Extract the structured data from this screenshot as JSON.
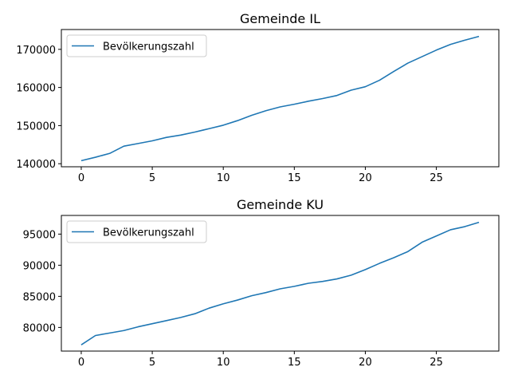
{
  "chart_data": [
    {
      "type": "line",
      "title": "Gemeinde IL",
      "xlabel": "",
      "ylabel": "",
      "legend": {
        "placement": "top-left",
        "entries": [
          "Bevölkerungszahl"
        ]
      },
      "grid": false,
      "xlim": [
        -1.4,
        29.4
      ],
      "ylim": [
        139200,
        175200
      ],
      "x_ticks": [
        0,
        5,
        10,
        15,
        20,
        25
      ],
      "y_ticks": [
        140000,
        150000,
        160000,
        170000
      ],
      "x": [
        0,
        1,
        2,
        3,
        4,
        5,
        6,
        7,
        8,
        9,
        10,
        11,
        12,
        13,
        14,
        15,
        16,
        17,
        18,
        19,
        20,
        21,
        22,
        23,
        24,
        25,
        26,
        27,
        28
      ],
      "series": [
        {
          "name": "Bevölkerungszahl",
          "color": "#1f77b4",
          "values": [
            140800,
            141700,
            142700,
            144600,
            145300,
            146000,
            146900,
            147500,
            148300,
            149200,
            150100,
            151300,
            152700,
            153900,
            154900,
            155600,
            156400,
            157100,
            157900,
            159300,
            160200,
            161900,
            164200,
            166400,
            168100,
            169800,
            171300,
            172400,
            173400
          ]
        }
      ]
    },
    {
      "type": "line",
      "title": "Gemeinde KU",
      "xlabel": "",
      "ylabel": "",
      "legend": {
        "placement": "top-left",
        "entries": [
          "Bevölkerungszahl"
        ]
      },
      "grid": false,
      "xlim": [
        -1.4,
        29.4
      ],
      "ylim": [
        76200,
        98000
      ],
      "x_ticks": [
        0,
        5,
        10,
        15,
        20,
        25
      ],
      "y_ticks": [
        80000,
        85000,
        90000,
        95000
      ],
      "x": [
        0,
        1,
        2,
        3,
        4,
        5,
        6,
        7,
        8,
        9,
        10,
        11,
        12,
        13,
        14,
        15,
        16,
        17,
        18,
        19,
        20,
        21,
        22,
        23,
        24,
        25,
        26,
        27,
        28
      ],
      "series": [
        {
          "name": "Bevölkerungszahl",
          "color": "#1f77b4",
          "values": [
            77200,
            78700,
            79100,
            79500,
            80100,
            80600,
            81100,
            81600,
            82200,
            83100,
            83800,
            84400,
            85100,
            85600,
            86200,
            86600,
            87100,
            87400,
            87800,
            88400,
            89300,
            90300,
            91200,
            92200,
            93700,
            94700,
            95700,
            96200,
            96900
          ]
        }
      ]
    }
  ]
}
